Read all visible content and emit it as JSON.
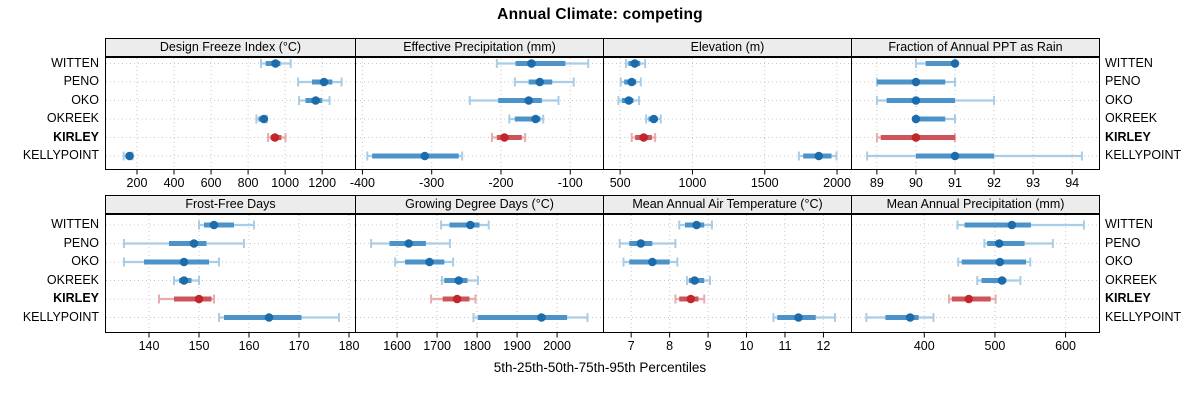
{
  "title": "Annual Climate: competing",
  "caption": "5th-25th-50th-75th-95th Percentiles",
  "percentile_labels": [
    "5th",
    "25th",
    "50th",
    "75th",
    "95th"
  ],
  "sites": [
    "WITTEN",
    "PENO",
    "OKO",
    "OKREEK",
    "KIRLEY",
    "KELLYPOINT"
  ],
  "highlight_site": "KIRLEY",
  "colors": {
    "blue_median": "#1c6cab",
    "blue_band": "#4b93c8",
    "blue_range": "#a9cde6",
    "red_median": "#c0262b",
    "red_band": "#cd5458",
    "red_range": "#e9abad",
    "strip_bg": "#ececec",
    "grid": "#c8c8c8",
    "border": "#000000",
    "text": "#000000"
  },
  "chart_data": [
    {
      "type": "percentile-dotplot",
      "title": "Design Freeze Index (°C)",
      "row": 0,
      "col": 0,
      "xlim": [
        30,
        1380
      ],
      "ticks": [
        200,
        400,
        600,
        800,
        1000,
        1200
      ],
      "series": [
        {
          "site": "WITTEN",
          "p": [
            870,
            895,
            948,
            975,
            1030
          ]
        },
        {
          "site": "PENO",
          "p": [
            1070,
            1145,
            1210,
            1255,
            1305
          ]
        },
        {
          "site": "OKO",
          "p": [
            1075,
            1110,
            1165,
            1200,
            1240
          ]
        },
        {
          "site": "OKREEK",
          "p": [
            845,
            856,
            885,
            895,
            901
          ]
        },
        {
          "site": "KIRLEY",
          "p": [
            908,
            922,
            945,
            980,
            1002
          ]
        },
        {
          "site": "KELLYPOINT",
          "p": [
            128,
            138,
            160,
            170,
            176
          ]
        }
      ]
    },
    {
      "type": "percentile-dotplot",
      "title": "Effective Precipitation (mm)",
      "row": 0,
      "col": 1,
      "xlim": [
        -410,
        -52
      ],
      "ticks": [
        -400,
        -300,
        -200,
        -100
      ],
      "series": [
        {
          "site": "WITTEN",
          "p": [
            -206,
            -179,
            -156,
            -107,
            -74
          ]
        },
        {
          "site": "PENO",
          "p": [
            -180,
            -160,
            -144,
            -126,
            -95
          ]
        },
        {
          "site": "OKO",
          "p": [
            -245,
            -204,
            -160,
            -141,
            -117
          ]
        },
        {
          "site": "OKREEK",
          "p": [
            -188,
            -180,
            -150,
            -143,
            -139
          ]
        },
        {
          "site": "KIRLEY",
          "p": [
            -213,
            -206,
            -195,
            -170,
            -165
          ]
        },
        {
          "site": "KELLYPOINT",
          "p": [
            -393,
            -386,
            -310,
            -261,
            -256
          ]
        }
      ]
    },
    {
      "type": "percentile-dotplot",
      "title": "Elevation (m)",
      "row": 0,
      "col": 2,
      "xlim": [
        385,
        2100
      ],
      "ticks": [
        500,
        1000,
        1500,
        2000
      ],
      "series": [
        {
          "site": "WITTEN",
          "p": [
            541,
            557,
            601,
            639,
            673
          ]
        },
        {
          "site": "PENO",
          "p": [
            504,
            528,
            580,
            611,
            643
          ]
        },
        {
          "site": "OKO",
          "p": [
            488,
            512,
            560,
            592,
            631
          ]
        },
        {
          "site": "OKREEK",
          "p": [
            680,
            696,
            733,
            758,
            781
          ]
        },
        {
          "site": "KIRLEY",
          "p": [
            580,
            604,
            663,
            719,
            742
          ]
        },
        {
          "site": "KELLYPOINT",
          "p": [
            1736,
            1766,
            1874,
            1962,
            1996
          ]
        }
      ]
    },
    {
      "type": "percentile-dotplot",
      "title": "Fraction of Annual PPT as Rain",
      "row": 0,
      "col": 3,
      "xlim": [
        88.35,
        94.7
      ],
      "ticks": [
        89,
        90,
        91,
        92,
        93,
        94
      ],
      "series": [
        {
          "site": "WITTEN",
          "p": [
            90,
            90.25,
            91,
            91,
            91
          ]
        },
        {
          "site": "PENO",
          "p": [
            89,
            89,
            90,
            90.75,
            91
          ]
        },
        {
          "site": "OKO",
          "p": [
            89,
            89.25,
            90,
            91,
            92
          ]
        },
        {
          "site": "OKREEK",
          "p": [
            90,
            90,
            90,
            90.75,
            91
          ]
        },
        {
          "site": "KIRLEY",
          "p": [
            89,
            89.1,
            90,
            91,
            91
          ]
        },
        {
          "site": "KELLYPOINT",
          "p": [
            88.75,
            90,
            91,
            92,
            94.25
          ]
        }
      ]
    },
    {
      "type": "percentile-dotplot",
      "title": "Frost-Free Days",
      "row": 1,
      "col": 0,
      "xlim": [
        131.3,
        181.3
      ],
      "ticks": [
        140,
        150,
        160,
        170,
        180
      ],
      "series": [
        {
          "site": "WITTEN",
          "p": [
            150,
            151,
            153,
            157,
            161
          ]
        },
        {
          "site": "PENO",
          "p": [
            135,
            144,
            149,
            151.5,
            159
          ]
        },
        {
          "site": "OKO",
          "p": [
            135,
            139,
            147,
            152,
            154
          ]
        },
        {
          "site": "OKREEK",
          "p": [
            145,
            146,
            147,
            148.5,
            150
          ]
        },
        {
          "site": "KIRLEY",
          "p": [
            142,
            145,
            150,
            152.5,
            153
          ]
        },
        {
          "site": "KELLYPOINT",
          "p": [
            154,
            155,
            164,
            170.5,
            178
          ]
        }
      ]
    },
    {
      "type": "percentile-dotplot",
      "title": "Growing Degree Days (°C)",
      "row": 1,
      "col": 1,
      "xlim": [
        1496,
        2116
      ],
      "ticks": [
        1600,
        1700,
        1800,
        1900,
        2000
      ],
      "series": [
        {
          "site": "WITTEN",
          "p": [
            1710,
            1731,
            1783,
            1806,
            1829
          ]
        },
        {
          "site": "PENO",
          "p": [
            1535,
            1581,
            1629,
            1672,
            1732
          ]
        },
        {
          "site": "OKO",
          "p": [
            1595,
            1620,
            1681,
            1718,
            1740
          ]
        },
        {
          "site": "OKREEK",
          "p": [
            1712,
            1718,
            1754,
            1776,
            1802
          ]
        },
        {
          "site": "KIRLEY",
          "p": [
            1685,
            1714,
            1750,
            1781,
            1796
          ]
        },
        {
          "site": "KELLYPOINT",
          "p": [
            1791,
            1802,
            1961,
            2025,
            2076
          ]
        }
      ]
    },
    {
      "type": "percentile-dotplot",
      "title": "Mean Annual Air Temperature (°C)",
      "row": 1,
      "col": 2,
      "xlim": [
        6.28,
        12.73
      ],
      "ticks": [
        7,
        8,
        9,
        10,
        11,
        12
      ],
      "series": [
        {
          "site": "WITTEN",
          "p": [
            8.25,
            8.4,
            8.7,
            8.9,
            9.1
          ]
        },
        {
          "site": "PENO",
          "p": [
            6.7,
            6.95,
            7.25,
            7.55,
            8.15
          ]
        },
        {
          "site": "OKO",
          "p": [
            6.8,
            6.95,
            7.55,
            8.0,
            8.2
          ]
        },
        {
          "site": "OKREEK",
          "p": [
            8.45,
            8.5,
            8.65,
            8.9,
            9.05
          ]
        },
        {
          "site": "KIRLEY",
          "p": [
            8.15,
            8.25,
            8.55,
            8.75,
            8.9
          ]
        },
        {
          "site": "KELLYPOINT",
          "p": [
            10.7,
            10.8,
            11.35,
            11.8,
            12.3
          ]
        }
      ]
    },
    {
      "type": "percentile-dotplot",
      "title": "Mean Annual Precipitation (mm)",
      "row": 1,
      "col": 3,
      "xlim": [
        297,
        648
      ],
      "ticks": [
        400,
        500,
        600
      ],
      "series": [
        {
          "site": "WITTEN",
          "p": [
            447,
            457,
            524,
            551,
            626
          ]
        },
        {
          "site": "PENO",
          "p": [
            485,
            489,
            506,
            542,
            582
          ]
        },
        {
          "site": "OKO",
          "p": [
            448,
            453,
            507,
            544,
            550
          ]
        },
        {
          "site": "OKREEK",
          "p": [
            475,
            481,
            510,
            516,
            536
          ]
        },
        {
          "site": "KIRLEY",
          "p": [
            435,
            439,
            463,
            494,
            501
          ]
        },
        {
          "site": "KELLYPOINT",
          "p": [
            318,
            345,
            380,
            392,
            413
          ]
        }
      ]
    }
  ]
}
